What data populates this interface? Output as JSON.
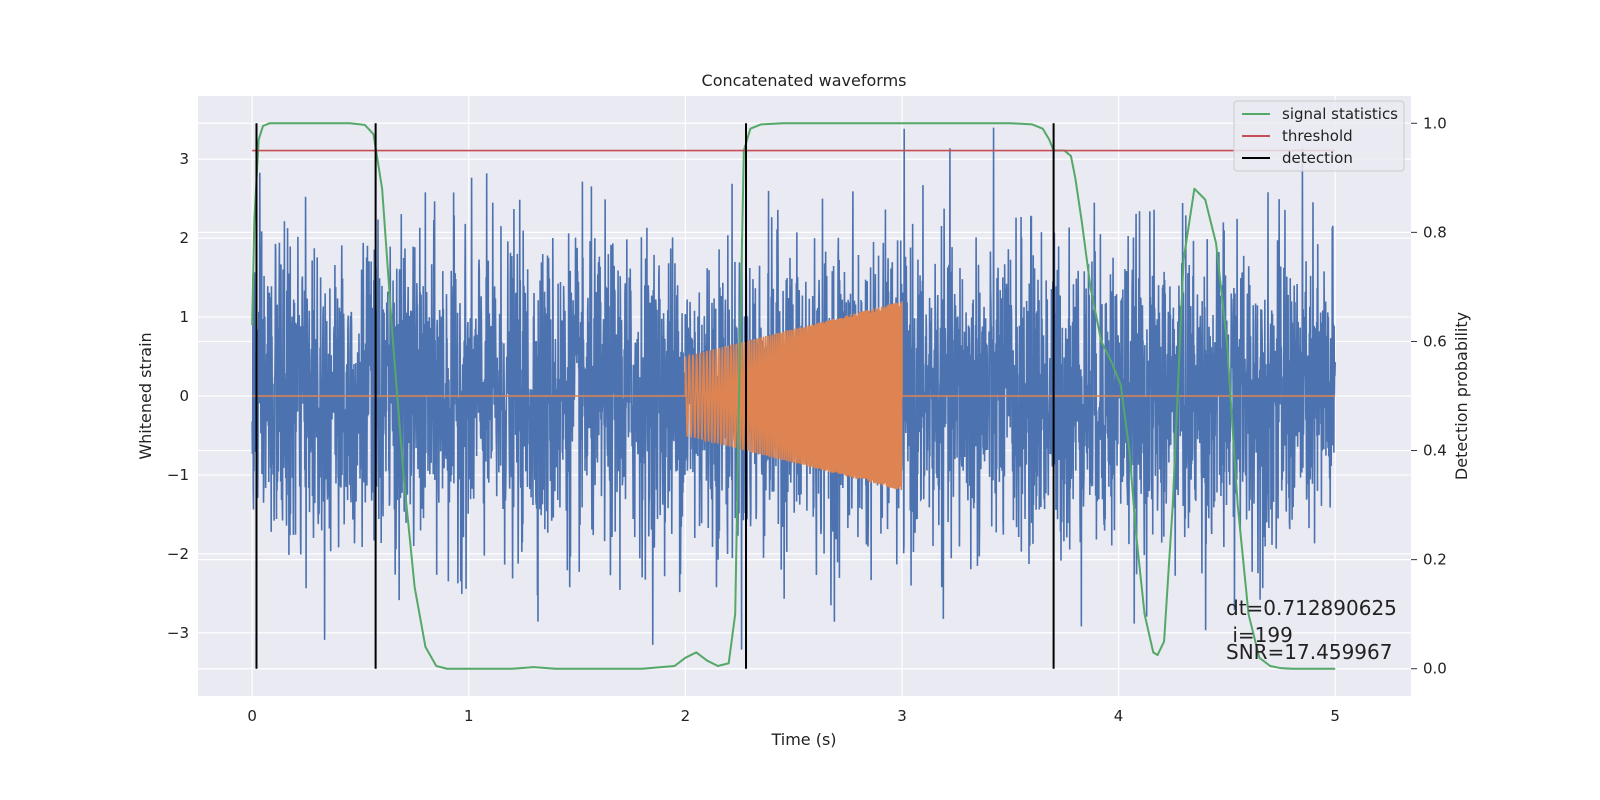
{
  "chart_data": {
    "type": "line",
    "title": "Concatenated waveforms",
    "xlabel": "Time (s)",
    "ylabel": "Whitened strain",
    "ylabel_right": "Detection probability",
    "xlim": [
      -0.25,
      5.35
    ],
    "ylim": [
      -3.8,
      3.8
    ],
    "ylim_right": [
      -0.05,
      1.05
    ],
    "x_ticks": [
      0,
      1,
      2,
      3,
      4,
      5
    ],
    "y_ticks": [
      -3,
      -2,
      -1,
      0,
      1,
      2,
      3
    ],
    "y_ticks_right": [
      0.0,
      0.2,
      0.4,
      0.6,
      0.8,
      1.0
    ],
    "x_tick_labels": [
      "0",
      "1",
      "2",
      "3",
      "4",
      "5"
    ],
    "y_tick_labels": [
      "−3",
      "−2",
      "−1",
      "0",
      "1",
      "2",
      "3"
    ],
    "y_tick_labels_right": [
      "0.0",
      "0.2",
      "0.4",
      "0.6",
      "0.8",
      "1.0"
    ],
    "grid": true,
    "legend_position": "top-right",
    "series": [
      {
        "name": "whitened strain noise",
        "color": "#4c72b0",
        "axis": "left",
        "x_range": [
          0,
          5
        ],
        "description_amplitude_envelope": [
          -3.5,
          3.4
        ]
      },
      {
        "name": "injected signal",
        "color": "#dd8452",
        "axis": "left",
        "x_range": [
          0,
          5
        ],
        "chirp_start": 2.0,
        "chirp_end": 3.0,
        "amplitude_start": 0.5,
        "amplitude_end": 1.2
      },
      {
        "name": "signal statistics",
        "color": "#55a868",
        "axis": "right",
        "x": [
          0.0,
          0.01,
          0.03,
          0.05,
          0.08,
          0.15,
          0.3,
          0.45,
          0.52,
          0.56,
          0.6,
          0.65,
          0.7,
          0.75,
          0.8,
          0.85,
          0.9,
          1.0,
          1.2,
          1.3,
          1.4,
          1.6,
          1.8,
          1.95,
          2.0,
          2.05,
          2.1,
          2.15,
          2.2,
          2.23,
          2.25,
          2.27,
          2.3,
          2.35,
          2.45,
          2.8,
          3.2,
          3.5,
          3.6,
          3.65,
          3.68,
          3.7,
          3.72,
          3.75,
          3.78,
          3.8,
          3.83,
          3.87,
          3.92,
          3.97,
          4.01,
          4.05,
          4.08,
          4.12,
          4.16,
          4.18,
          4.21,
          4.25,
          4.3,
          4.35,
          4.4,
          4.45,
          4.5,
          4.55,
          4.6,
          4.65,
          4.7,
          4.75,
          4.8,
          4.9,
          5.0
        ],
        "y": [
          0.63,
          0.82,
          0.97,
          0.995,
          1.0,
          1.0,
          1.0,
          1.0,
          0.997,
          0.98,
          0.88,
          0.6,
          0.35,
          0.15,
          0.04,
          0.005,
          0.0,
          0.0,
          0.0,
          0.003,
          0.0,
          0.0,
          0.0,
          0.005,
          0.02,
          0.03,
          0.015,
          0.005,
          0.01,
          0.1,
          0.55,
          0.95,
          0.99,
          0.998,
          1.0,
          1.0,
          1.0,
          1.0,
          0.998,
          0.99,
          0.97,
          0.95,
          0.95,
          0.95,
          0.94,
          0.9,
          0.82,
          0.7,
          0.6,
          0.56,
          0.52,
          0.4,
          0.25,
          0.1,
          0.03,
          0.025,
          0.05,
          0.3,
          0.75,
          0.88,
          0.86,
          0.78,
          0.6,
          0.3,
          0.1,
          0.02,
          0.005,
          0.001,
          0.0,
          0.0,
          0.0
        ]
      },
      {
        "name": "threshold",
        "color": "#c44e52",
        "axis": "right",
        "x": [
          0.0,
          5.0
        ],
        "y": [
          0.95,
          0.95
        ]
      },
      {
        "name": "detection",
        "color": "#000000",
        "axis": "right",
        "type": "vlines",
        "x": [
          0.02,
          0.57,
          2.28,
          3.7
        ]
      }
    ],
    "legend": [
      {
        "label": "signal statistics",
        "color": "#55a868"
      },
      {
        "label": "threshold",
        "color": "#c44e52"
      },
      {
        "label": "detection",
        "color": "#000000"
      }
    ],
    "annotations": [
      "dt=0.712890625",
      " i=199",
      "SNR=17.459967"
    ]
  }
}
